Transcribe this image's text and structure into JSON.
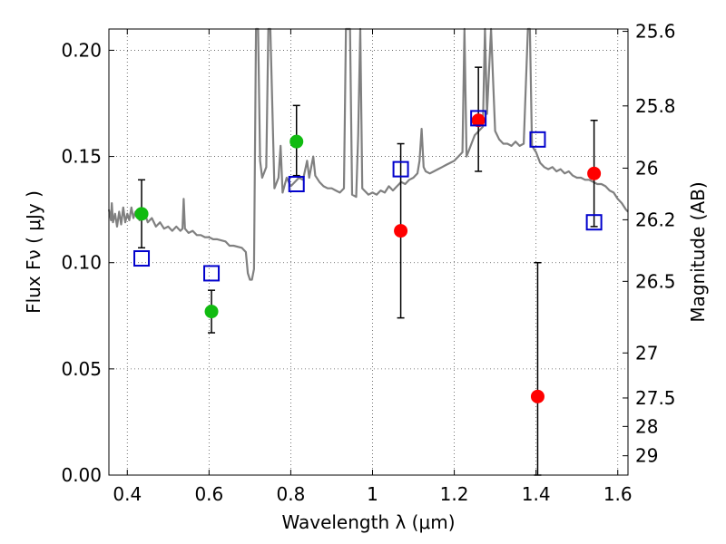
{
  "chart_data": {
    "type": "scatter",
    "xlabel": "Wavelength  λ (μm)",
    "ylabel": "Flux  Fν  ( μJy )",
    "y2label": "Magnitude (AB)",
    "xlim": [
      0.355,
      1.625
    ],
    "ylim": [
      0.0,
      0.21
    ],
    "x_ticks": [
      0.4,
      0.6,
      0.8,
      1.0,
      1.2,
      1.4,
      1.6
    ],
    "x_tick_labels": [
      "0.4",
      "0.6",
      "0.8",
      "1",
      "1.2",
      "1.4",
      "1.6"
    ],
    "y_ticks": [
      0.0,
      0.05,
      0.1,
      0.15,
      0.2
    ],
    "y_tick_labels": [
      "0.00",
      "0.05",
      "0.10",
      "0.15",
      "0.20"
    ],
    "y2_ticks": [
      {
        "label": "25.6",
        "flux": 0.2089
      },
      {
        "label": "25.8",
        "flux": 0.1738
      },
      {
        "label": "26",
        "flux": 0.1445
      },
      {
        "label": "26.2",
        "flux": 0.1202
      },
      {
        "label": "26.5",
        "flux": 0.0912
      },
      {
        "label": "27",
        "flux": 0.0575
      },
      {
        "label": "27.5",
        "flux": 0.0363
      },
      {
        "label": "28",
        "flux": 0.0229
      },
      {
        "label": "29",
        "flux": 0.0091
      }
    ],
    "grid": true,
    "colors": {
      "model": "#808080",
      "green": "#11bb11",
      "red": "#ff0000",
      "square": "#0000cc",
      "errorbar": "#000000"
    },
    "series": [
      {
        "kind": "line",
        "points": [
          [
            0.355,
            0.125
          ],
          [
            0.36,
            0.12
          ],
          [
            0.362,
            0.128
          ],
          [
            0.365,
            0.119
          ],
          [
            0.37,
            0.123
          ],
          [
            0.375,
            0.117
          ],
          [
            0.38,
            0.124
          ],
          [
            0.385,
            0.118
          ],
          [
            0.39,
            0.126
          ],
          [
            0.395,
            0.119
          ],
          [
            0.4,
            0.123
          ],
          [
            0.405,
            0.12
          ],
          [
            0.41,
            0.126
          ],
          [
            0.415,
            0.121
          ],
          [
            0.42,
            0.124
          ],
          [
            0.43,
            0.12
          ],
          [
            0.44,
            0.125
          ],
          [
            0.45,
            0.119
          ],
          [
            0.46,
            0.121
          ],
          [
            0.47,
            0.117
          ],
          [
            0.48,
            0.119
          ],
          [
            0.49,
            0.116
          ],
          [
            0.5,
            0.117
          ],
          [
            0.51,
            0.115
          ],
          [
            0.52,
            0.117
          ],
          [
            0.53,
            0.115
          ],
          [
            0.535,
            0.116
          ],
          [
            0.538,
            0.13
          ],
          [
            0.541,
            0.116
          ],
          [
            0.55,
            0.114
          ],
          [
            0.56,
            0.115
          ],
          [
            0.57,
            0.113
          ],
          [
            0.58,
            0.113
          ],
          [
            0.59,
            0.112
          ],
          [
            0.6,
            0.112
          ],
          [
            0.61,
            0.111
          ],
          [
            0.62,
            0.111
          ],
          [
            0.64,
            0.11
          ],
          [
            0.65,
            0.108
          ],
          [
            0.66,
            0.108
          ],
          [
            0.68,
            0.107
          ],
          [
            0.69,
            0.105
          ],
          [
            0.695,
            0.095
          ],
          [
            0.7,
            0.092
          ],
          [
            0.705,
            0.092
          ],
          [
            0.71,
            0.097
          ],
          [
            0.715,
            0.21
          ],
          [
            0.72,
            0.21
          ],
          [
            0.725,
            0.148
          ],
          [
            0.73,
            0.14
          ],
          [
            0.74,
            0.145
          ],
          [
            0.745,
            0.21
          ],
          [
            0.75,
            0.21
          ],
          [
            0.76,
            0.135
          ],
          [
            0.77,
            0.14
          ],
          [
            0.775,
            0.155
          ],
          [
            0.78,
            0.133
          ],
          [
            0.79,
            0.14
          ],
          [
            0.8,
            0.136
          ],
          [
            0.81,
            0.138
          ],
          [
            0.82,
            0.14
          ],
          [
            0.83,
            0.139
          ],
          [
            0.84,
            0.148
          ],
          [
            0.845,
            0.14
          ],
          [
            0.855,
            0.15
          ],
          [
            0.86,
            0.141
          ],
          [
            0.87,
            0.138
          ],
          [
            0.88,
            0.136
          ],
          [
            0.89,
            0.135
          ],
          [
            0.9,
            0.135
          ],
          [
            0.91,
            0.134
          ],
          [
            0.92,
            0.133
          ],
          [
            0.93,
            0.135
          ],
          [
            0.935,
            0.21
          ],
          [
            0.945,
            0.21
          ],
          [
            0.95,
            0.132
          ],
          [
            0.96,
            0.131
          ],
          [
            0.965,
            0.16
          ],
          [
            0.97,
            0.21
          ],
          [
            0.975,
            0.135
          ],
          [
            0.98,
            0.134
          ],
          [
            0.99,
            0.132
          ],
          [
            1.0,
            0.133
          ],
          [
            1.01,
            0.132
          ],
          [
            1.02,
            0.134
          ],
          [
            1.03,
            0.133
          ],
          [
            1.04,
            0.136
          ],
          [
            1.05,
            0.134
          ],
          [
            1.06,
            0.136
          ],
          [
            1.07,
            0.138
          ],
          [
            1.08,
            0.137
          ],
          [
            1.09,
            0.139
          ],
          [
            1.1,
            0.14
          ],
          [
            1.11,
            0.142
          ],
          [
            1.115,
            0.148
          ],
          [
            1.12,
            0.163
          ],
          [
            1.125,
            0.145
          ],
          [
            1.13,
            0.143
          ],
          [
            1.14,
            0.142
          ],
          [
            1.15,
            0.143
          ],
          [
            1.16,
            0.144
          ],
          [
            1.17,
            0.145
          ],
          [
            1.18,
            0.146
          ],
          [
            1.19,
            0.147
          ],
          [
            1.2,
            0.148
          ],
          [
            1.21,
            0.15
          ],
          [
            1.22,
            0.152
          ],
          [
            1.225,
            0.21
          ],
          [
            1.23,
            0.15
          ],
          [
            1.24,
            0.155
          ],
          [
            1.25,
            0.16
          ],
          [
            1.26,
            0.162
          ],
          [
            1.27,
            0.164
          ],
          [
            1.275,
            0.21
          ],
          [
            1.28,
            0.17
          ],
          [
            1.29,
            0.21
          ],
          [
            1.3,
            0.162
          ],
          [
            1.31,
            0.158
          ],
          [
            1.32,
            0.156
          ],
          [
            1.33,
            0.156
          ],
          [
            1.34,
            0.155
          ],
          [
            1.35,
            0.157
          ],
          [
            1.36,
            0.155
          ],
          [
            1.37,
            0.156
          ],
          [
            1.38,
            0.21
          ],
          [
            1.385,
            0.21
          ],
          [
            1.39,
            0.155
          ],
          [
            1.4,
            0.152
          ],
          [
            1.41,
            0.147
          ],
          [
            1.42,
            0.145
          ],
          [
            1.43,
            0.144
          ],
          [
            1.44,
            0.145
          ],
          [
            1.45,
            0.143
          ],
          [
            1.46,
            0.144
          ],
          [
            1.47,
            0.142
          ],
          [
            1.48,
            0.143
          ],
          [
            1.49,
            0.141
          ],
          [
            1.5,
            0.14
          ],
          [
            1.51,
            0.14
          ],
          [
            1.52,
            0.139
          ],
          [
            1.53,
            0.139
          ],
          [
            1.54,
            0.138
          ],
          [
            1.55,
            0.137
          ],
          [
            1.56,
            0.137
          ],
          [
            1.57,
            0.136
          ],
          [
            1.58,
            0.134
          ],
          [
            1.59,
            0.133
          ],
          [
            1.6,
            0.13
          ],
          [
            1.61,
            0.128
          ],
          [
            1.62,
            0.125
          ],
          [
            1.625,
            0.124
          ]
        ]
      },
      {
        "kind": "points",
        "marker": "circle",
        "color": "green",
        "points": [
          {
            "x": 0.435,
            "y": 0.123,
            "yerr": [
              0.107,
              0.139
            ]
          },
          {
            "x": 0.606,
            "y": 0.077,
            "yerr": [
              0.067,
              0.087
            ]
          },
          {
            "x": 0.814,
            "y": 0.157,
            "yerr": [
              0.141,
              0.174
            ]
          }
        ]
      },
      {
        "kind": "points",
        "marker": "circle",
        "color": "red",
        "points": [
          {
            "x": 1.069,
            "y": 0.115,
            "yerr": [
              0.074,
              0.156
            ]
          },
          {
            "x": 1.259,
            "y": 0.167,
            "yerr": [
              0.143,
              0.192
            ]
          },
          {
            "x": 1.404,
            "y": 0.037,
            "yerr": [
              0.0,
              0.1
            ]
          },
          {
            "x": 1.542,
            "y": 0.142,
            "yerr": [
              0.117,
              0.167
            ]
          }
        ]
      },
      {
        "kind": "points",
        "marker": "square",
        "color": "square",
        "points": [
          {
            "x": 0.435,
            "y": 0.102
          },
          {
            "x": 0.606,
            "y": 0.095
          },
          {
            "x": 0.814,
            "y": 0.137
          },
          {
            "x": 1.069,
            "y": 0.144
          },
          {
            "x": 1.259,
            "y": 0.168
          },
          {
            "x": 1.404,
            "y": 0.158
          },
          {
            "x": 1.542,
            "y": 0.119
          }
        ]
      }
    ]
  }
}
